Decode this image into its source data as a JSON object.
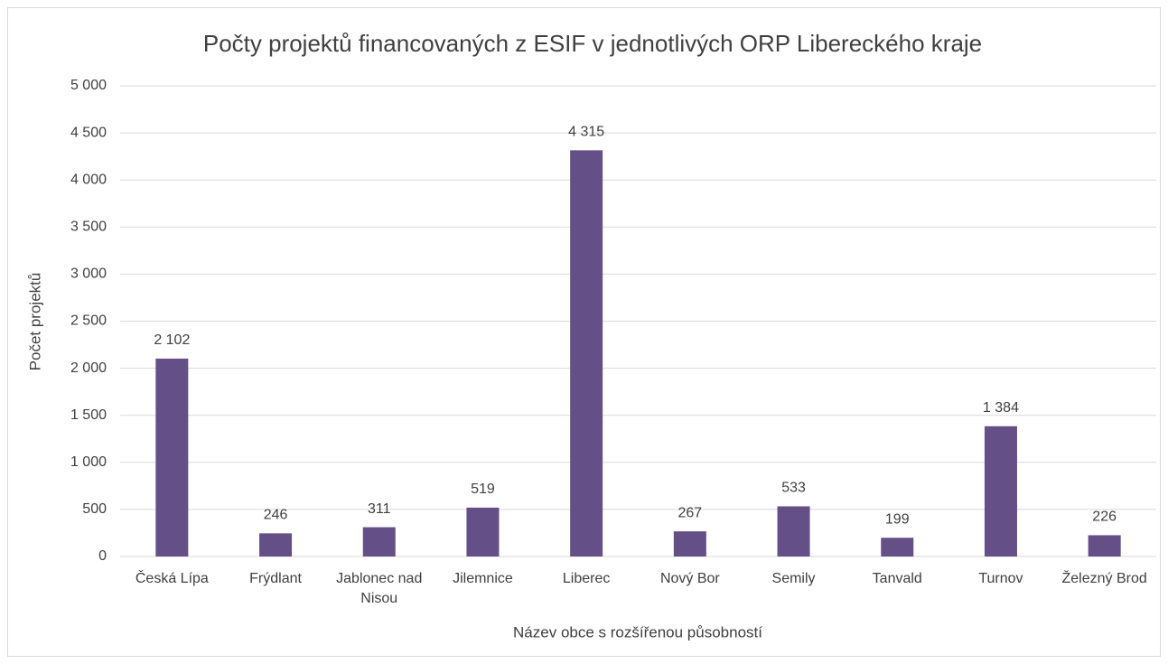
{
  "chart_data": {
    "type": "bar",
    "title": "Počty projektů financovaných z ESIF v jednotlivých ORP Libereckého kraje",
    "x_label": "Název obce s rozšířenou působností",
    "y_label": "Počet projektů",
    "categories": [
      "Česká Lípa",
      "Frýdlant",
      "Jablonec nad Nisou",
      "Jilemnice",
      "Liberec",
      "Nový Bor",
      "Semily",
      "Tanvald",
      "Turnov",
      "Železný Brod"
    ],
    "values": [
      2102,
      246,
      311,
      519,
      4315,
      267,
      533,
      199,
      1384,
      226
    ],
    "value_labels": [
      "2 102",
      "246",
      "311",
      "519",
      "4 315",
      "267",
      "533",
      "199",
      "1 384",
      "226"
    ],
    "color": "#644f86",
    "ylim": [
      0,
      5000
    ],
    "yticks": [
      0,
      500,
      {
        "value": 1000,
        "label": "1 000"
      },
      {
        "value": 1500,
        "label": "1 500"
      },
      {
        "value": 2000,
        "label": "2 000"
      },
      {
        "value": 2500,
        "label": "2 500"
      },
      {
        "value": 3000,
        "label": "3 000"
      },
      {
        "value": 3500,
        "label": "3 500"
      },
      {
        "value": 4000,
        "label": "4 000"
      },
      {
        "value": 4500,
        "label": "4 500"
      },
      {
        "value": 5000,
        "label": "5 000"
      }
    ],
    "grid": true
  }
}
